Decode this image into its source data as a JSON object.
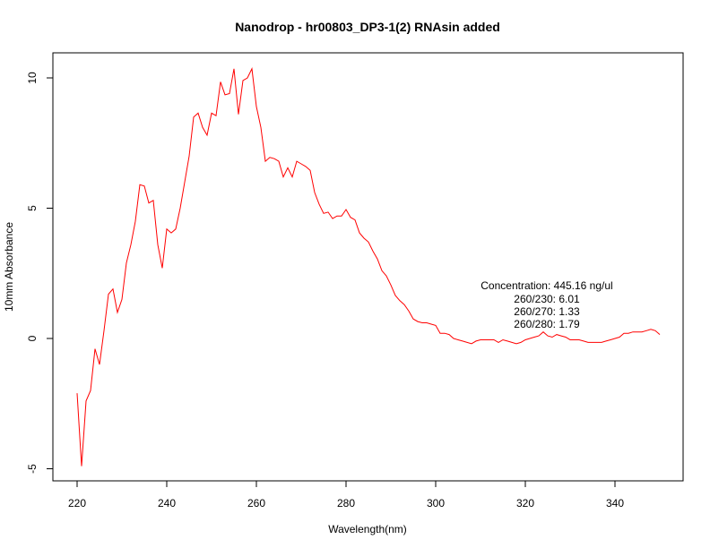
{
  "chart_data": {
    "type": "line",
    "title": "Nanodrop - hr00803_DP3-1(2) RNAsin added",
    "xlabel": "Wavelength(nm)",
    "ylabel": "10mm Absorbance",
    "xlim": [
      220,
      350
    ],
    "ylim": [
      -5,
      10
    ],
    "x_ticks": [
      220,
      240,
      260,
      280,
      300,
      320,
      340
    ],
    "y_ticks": [
      -5,
      0,
      5,
      10
    ],
    "grid": false,
    "series": [
      {
        "color": "#ff0000",
        "x": [
          220,
          221,
          222,
          223,
          224,
          225,
          226,
          227,
          228,
          229,
          230,
          231,
          232,
          233,
          234,
          235,
          236,
          237,
          238,
          239,
          240,
          241,
          242,
          243,
          244,
          245,
          246,
          247,
          248,
          249,
          250,
          251,
          252,
          253,
          254,
          255,
          256,
          257,
          258,
          259,
          260,
          261,
          262,
          263,
          264,
          265,
          266,
          267,
          268,
          269,
          270,
          271,
          272,
          273,
          274,
          275,
          276,
          277,
          278,
          279,
          280,
          281,
          282,
          283,
          284,
          285,
          286,
          287,
          288,
          289,
          290,
          291,
          292,
          293,
          294,
          295,
          296,
          297,
          298,
          299,
          300,
          301,
          302,
          303,
          304,
          305,
          306,
          307,
          308,
          309,
          310,
          311,
          312,
          313,
          314,
          315,
          316,
          317,
          318,
          319,
          320,
          321,
          322,
          323,
          324,
          325,
          326,
          327,
          328,
          329,
          330,
          331,
          332,
          333,
          334,
          335,
          336,
          337,
          338,
          339,
          340,
          341,
          342,
          343,
          344,
          345,
          346,
          347,
          348,
          349,
          350
        ],
        "y": [
          -2.1,
          -4.9,
          -2.4,
          -2.0,
          -0.4,
          -1.0,
          0.3,
          1.7,
          1.9,
          1.0,
          1.5,
          2.9,
          3.6,
          4.5,
          5.9,
          5.85,
          5.2,
          5.3,
          3.6,
          2.7,
          4.2,
          4.05,
          4.2,
          5.0,
          6.0,
          7.0,
          8.5,
          8.65,
          8.1,
          7.8,
          8.65,
          8.55,
          9.85,
          9.35,
          9.4,
          10.35,
          8.6,
          9.9,
          10.0,
          10.35,
          8.9,
          8.1,
          6.8,
          6.95,
          6.9,
          6.8,
          6.2,
          6.55,
          6.2,
          6.8,
          6.7,
          6.6,
          6.45,
          5.6,
          5.15,
          4.8,
          4.85,
          4.6,
          4.7,
          4.7,
          4.95,
          4.65,
          4.55,
          4.05,
          3.85,
          3.7,
          3.35,
          3.05,
          2.6,
          2.4,
          2.05,
          1.65,
          1.45,
          1.3,
          1.05,
          0.75,
          0.65,
          0.6,
          0.6,
          0.55,
          0.5,
          0.2,
          0.2,
          0.15,
          0.0,
          -0.05,
          -0.1,
          -0.15,
          -0.2,
          -0.1,
          -0.05,
          -0.05,
          -0.05,
          -0.05,
          -0.15,
          -0.05,
          -0.1,
          -0.15,
          -0.2,
          -0.15,
          -0.05,
          0.0,
          0.05,
          0.1,
          0.25,
          0.1,
          0.05,
          0.15,
          0.1,
          0.05,
          -0.05,
          -0.05,
          -0.05,
          -0.1,
          -0.15,
          -0.15,
          -0.15,
          -0.15,
          -0.1,
          -0.05,
          0.0,
          0.05,
          0.2,
          0.2,
          0.25,
          0.25,
          0.25,
          0.3,
          0.35,
          0.3,
          0.15
        ]
      }
    ],
    "annotations": [
      "Concentration: 445.16 ng/ul",
      "260/230: 6.01",
      "260/270: 1.33",
      "260/280: 1.79"
    ]
  }
}
